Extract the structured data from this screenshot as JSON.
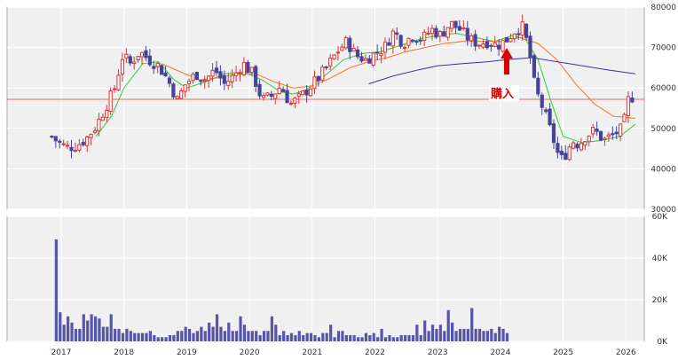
{
  "chart_data": [
    {
      "type": "candlestick",
      "x_ticks": [
        "2017",
        "2018",
        "2019",
        "2020",
        "2021",
        "2022",
        "2023",
        "2024",
        "2025",
        "2026"
      ],
      "y_ticks": [
        "30000",
        "40000",
        "50000",
        "60000",
        "70000",
        "80000"
      ],
      "ylim": [
        30000,
        80000
      ],
      "grid": true,
      "horizontal_line": {
        "value": 57200,
        "color": "#ee6666"
      },
      "annotation": {
        "text": "購入",
        "x": 2024.05,
        "color": "#dd0000"
      },
      "colors": {
        "up": "#dd3333",
        "down": "#444499",
        "ma_short": "#33cc33",
        "ma_mid": "#ee7722",
        "ma_long": "#3333aa"
      },
      "series": [
        {
          "name": "candles",
          "ohlc_anchor_closes": [
            [
              2016.85,
              48000
            ],
            [
              2016.92,
              47000
            ],
            [
              2017.0,
              46000
            ],
            [
              2017.1,
              45300
            ],
            [
              2017.25,
              45800
            ],
            [
              2017.4,
              47500
            ],
            [
              2017.55,
              50500
            ],
            [
              2017.7,
              55000
            ],
            [
              2017.85,
              60000
            ],
            [
              2017.98,
              68000
            ],
            [
              2018.1,
              66000
            ],
            [
              2018.25,
              69000
            ],
            [
              2018.4,
              67000
            ],
            [
              2018.55,
              65500
            ],
            [
              2018.7,
              62000
            ],
            [
              2018.85,
              57000
            ],
            [
              2018.98,
              61000
            ],
            [
              2019.15,
              63500
            ],
            [
              2019.3,
              62000
            ],
            [
              2019.45,
              64500
            ],
            [
              2019.6,
              61000
            ],
            [
              2019.75,
              63000
            ],
            [
              2019.9,
              66000
            ],
            [
              2020.05,
              63500
            ],
            [
              2020.2,
              57000
            ],
            [
              2020.35,
              58000
            ],
            [
              2020.5,
              60500
            ],
            [
              2020.65,
              56000
            ],
            [
              2020.8,
              57500
            ],
            [
              2020.95,
              60000
            ],
            [
              2021.1,
              62500
            ],
            [
              2021.25,
              65500
            ],
            [
              2021.4,
              69000
            ],
            [
              2021.55,
              71500
            ],
            [
              2021.7,
              68000
            ],
            [
              2021.85,
              67000
            ],
            [
              2022.0,
              68500
            ],
            [
              2022.15,
              70000
            ],
            [
              2022.3,
              74000
            ],
            [
              2022.45,
              71000
            ],
            [
              2022.6,
              73000
            ],
            [
              2022.75,
              72000
            ],
            [
              2022.9,
              74500
            ],
            [
              2023.05,
              73000
            ],
            [
              2023.2,
              76000
            ],
            [
              2023.35,
              74500
            ],
            [
              2023.5,
              72000
            ],
            [
              2023.65,
              71000
            ],
            [
              2023.8,
              71500
            ],
            [
              2023.95,
              70500
            ],
            [
              2024.1,
              72000
            ],
            [
              2024.25,
              74500
            ],
            [
              2024.35,
              75000
            ],
            [
              2024.45,
              70000
            ],
            [
              2024.55,
              60000
            ],
            [
              2024.7,
              54000
            ],
            [
              2024.85,
              47000
            ],
            [
              2024.95,
              42000
            ],
            [
              2025.05,
              44000
            ],
            [
              2025.15,
              47000
            ],
            [
              2025.25,
              46000
            ],
            [
              2025.35,
              48000
            ],
            [
              2025.5,
              49500
            ],
            [
              2025.65,
              47000
            ],
            [
              2025.8,
              48500
            ],
            [
              2025.95,
              50000
            ],
            [
              2026.05,
              58000
            ],
            [
              2026.15,
              57500
            ]
          ]
        },
        {
          "name": "ma_short_points",
          "points": [
            [
              2017.55,
              48000
            ],
            [
              2017.8,
              53000
            ],
            [
              2018.0,
              60000
            ],
            [
              2018.3,
              66000
            ],
            [
              2018.55,
              66500
            ],
            [
              2018.8,
              62000
            ],
            [
              2019.0,
              60000
            ],
            [
              2019.3,
              61500
            ],
            [
              2019.6,
              63500
            ],
            [
              2019.9,
              64000
            ],
            [
              2020.2,
              62000
            ],
            [
              2020.5,
              59000
            ],
            [
              2020.7,
              58500
            ],
            [
              2020.9,
              59500
            ],
            [
              2021.2,
              63000
            ],
            [
              2021.5,
              67000
            ],
            [
              2021.8,
              68500
            ],
            [
              2022.1,
              69000
            ],
            [
              2022.4,
              70500
            ],
            [
              2022.7,
              72000
            ],
            [
              2023.0,
              73000
            ],
            [
              2023.3,
              73500
            ],
            [
              2023.6,
              72500
            ],
            [
              2023.9,
              71500
            ],
            [
              2024.2,
              73000
            ],
            [
              2024.4,
              72000
            ],
            [
              2024.6,
              67000
            ],
            [
              2024.8,
              57000
            ],
            [
              2025.0,
              48000
            ],
            [
              2025.3,
              46500
            ],
            [
              2025.6,
              47000
            ],
            [
              2025.9,
              48000
            ],
            [
              2026.15,
              51000
            ]
          ]
        },
        {
          "name": "ma_mid_points",
          "points": [
            [
              2018.6,
              66000
            ],
            [
              2018.9,
              64000
            ],
            [
              2019.2,
              62000
            ],
            [
              2019.5,
              62500
            ],
            [
              2019.8,
              63500
            ],
            [
              2020.1,
              63500
            ],
            [
              2020.4,
              61500
            ],
            [
              2020.7,
              60000
            ],
            [
              2021.0,
              60500
            ],
            [
              2021.3,
              62500
            ],
            [
              2021.6,
              65000
            ],
            [
              2021.9,
              66500
            ],
            [
              2022.2,
              67500
            ],
            [
              2022.5,
              69000
            ],
            [
              2022.8,
              70000
            ],
            [
              2023.1,
              71000
            ],
            [
              2023.4,
              71500
            ],
            [
              2023.7,
              71500
            ],
            [
              2024.0,
              71500
            ],
            [
              2024.3,
              72500
            ],
            [
              2024.6,
              71000
            ],
            [
              2024.9,
              67000
            ],
            [
              2025.2,
              61000
            ],
            [
              2025.5,
              56000
            ],
            [
              2025.8,
              53000
            ],
            [
              2026.15,
              52500
            ]
          ]
        },
        {
          "name": "ma_long_points",
          "points": [
            [
              2021.9,
              61000
            ],
            [
              2022.3,
              63000
            ],
            [
              2022.7,
              64500
            ],
            [
              2023.0,
              65500
            ],
            [
              2023.4,
              66000
            ],
            [
              2023.8,
              66500
            ],
            [
              2024.1,
              67000
            ],
            [
              2024.5,
              67500
            ],
            [
              2024.9,
              66500
            ],
            [
              2025.3,
              65500
            ],
            [
              2025.7,
              64500
            ],
            [
              2026.15,
              63500
            ]
          ]
        }
      ]
    },
    {
      "type": "bar",
      "y_ticks": [
        "0K",
        "20K",
        "40K",
        "60K"
      ],
      "ylim": [
        0,
        60000
      ],
      "color": "#5555aa",
      "x_start": 2016.92,
      "x_step": 0.0625,
      "values": [
        49000,
        14000,
        8000,
        12000,
        9000,
        6000,
        6000,
        13000,
        10000,
        13000,
        12000,
        11000,
        7000,
        7000,
        13000,
        6000,
        6000,
        4000,
        6000,
        5000,
        4000,
        4000,
        4000,
        4000,
        5000,
        3000,
        2000,
        2000,
        2000,
        3000,
        3000,
        5000,
        5000,
        7000,
        6000,
        4000,
        5000,
        7000,
        5000,
        9000,
        7000,
        13000,
        7000,
        5000,
        9000,
        5000,
        5000,
        12000,
        8000,
        5000,
        5000,
        5000,
        3000,
        5000,
        5000,
        12000,
        8000,
        3000,
        5000,
        3000,
        4000,
        3000,
        5000,
        3000,
        4000,
        4000,
        3000,
        2000,
        4000,
        4000,
        8000,
        2000,
        5000,
        5000,
        3000,
        3000,
        3000,
        2000,
        2000,
        4000,
        3000,
        4000,
        2000,
        6000,
        2000,
        3000,
        2000,
        2000,
        3000,
        3000,
        3000,
        3000,
        8000,
        3000,
        10000,
        5000,
        8000,
        6000,
        8000,
        5000,
        15000,
        9000,
        5000,
        6000,
        6000,
        6000,
        16000,
        6000,
        6000,
        5000,
        5000,
        6000,
        4000,
        7000,
        6000,
        4000
      ]
    }
  ]
}
